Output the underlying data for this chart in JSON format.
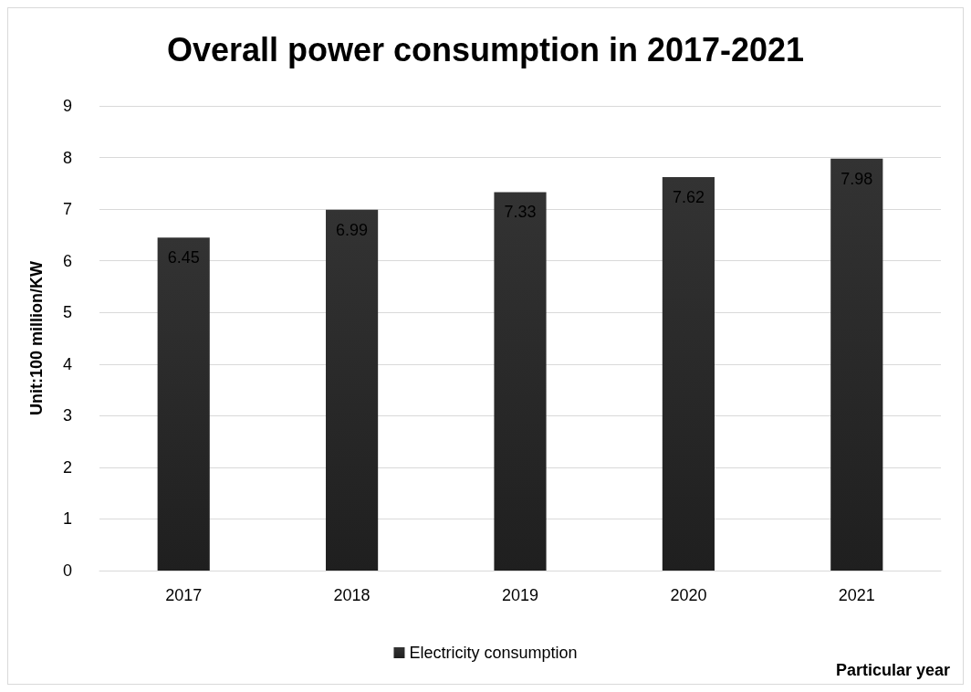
{
  "chart_data": {
    "type": "bar",
    "title": "Overall power consumption in 2017-2021",
    "xlabel": "Particular year",
    "ylabel": "Unit:100 million/KW",
    "categories": [
      "2017",
      "2018",
      "2019",
      "2020",
      "2021"
    ],
    "series": [
      {
        "name": "Electricity consumption",
        "color": "#333333",
        "values": [
          6.45,
          6.99,
          7.33,
          7.62,
          7.98
        ]
      }
    ],
    "ylim": [
      0,
      9
    ],
    "yticks": [
      0,
      1,
      2,
      3,
      4,
      5,
      6,
      7,
      8,
      9
    ],
    "grid": "y",
    "legend": "bottom",
    "data_labels": true
  }
}
